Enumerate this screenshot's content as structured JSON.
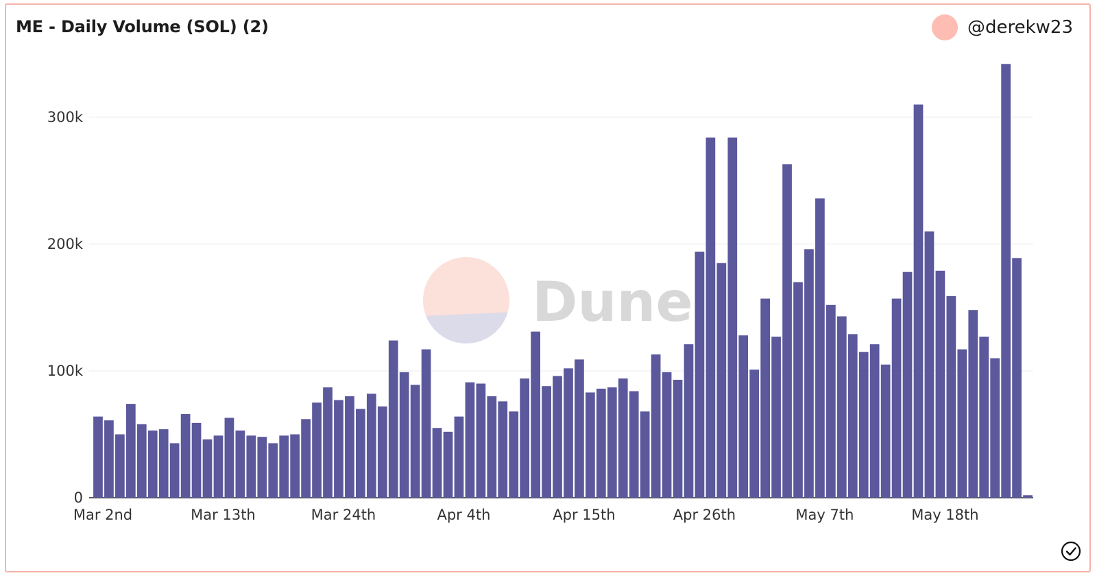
{
  "header": {
    "title": "ME - Daily Volume (SOL) (2)",
    "author": "@derekw23"
  },
  "watermark": {
    "text": "Dune"
  },
  "colors": {
    "bar": "#5b589c",
    "avatar": "#fdbdb2",
    "border": "#f5b3a8",
    "watermark_pink": "#fce0da",
    "watermark_lavender": "#dcdbea",
    "watermark_text": "#d8d8d8"
  },
  "icons": {
    "status": "check-circle-icon"
  },
  "chart_data": {
    "type": "bar",
    "title": "ME - Daily Volume (SOL) (2)",
    "xlabel": "",
    "ylabel": "",
    "ylim": [
      0,
      340000
    ],
    "grid": true,
    "legend": "none",
    "y_ticks": [
      {
        "value": 0,
        "label": "0"
      },
      {
        "value": 100000,
        "label": "100k"
      },
      {
        "value": 200000,
        "label": "200k"
      },
      {
        "value": 300000,
        "label": "300k"
      }
    ],
    "x_ticks": [
      {
        "index": 0,
        "label": "Mar 2nd"
      },
      {
        "index": 11,
        "label": "Mar 13th"
      },
      {
        "index": 22,
        "label": "Mar 24th"
      },
      {
        "index": 33,
        "label": "Apr 4th"
      },
      {
        "index": 44,
        "label": "Apr 15th"
      },
      {
        "index": 55,
        "label": "Apr 26th"
      },
      {
        "index": 66,
        "label": "May 7th"
      },
      {
        "index": 77,
        "label": "May 18th"
      }
    ],
    "start_date": "Mar 2nd",
    "values": [
      64000,
      61000,
      50000,
      74000,
      58000,
      53000,
      54000,
      43000,
      66000,
      59000,
      46000,
      49000,
      63000,
      53000,
      49000,
      48000,
      43000,
      49000,
      50000,
      62000,
      75000,
      87000,
      77000,
      80000,
      70000,
      82000,
      72000,
      124000,
      99000,
      89000,
      117000,
      55000,
      52000,
      64000,
      91000,
      90000,
      80000,
      76000,
      68000,
      94000,
      131000,
      88000,
      96000,
      102000,
      109000,
      83000,
      86000,
      87000,
      94000,
      84000,
      68000,
      113000,
      99000,
      93000,
      121000,
      194000,
      284000,
      185000,
      284000,
      128000,
      101000,
      157000,
      127000,
      263000,
      170000,
      196000,
      236000,
      152000,
      143000,
      129000,
      115000,
      121000,
      105000,
      157000,
      178000,
      310000,
      210000,
      179000,
      159000,
      117000,
      148000,
      127000,
      110000,
      342000,
      189000,
      2000
    ]
  }
}
